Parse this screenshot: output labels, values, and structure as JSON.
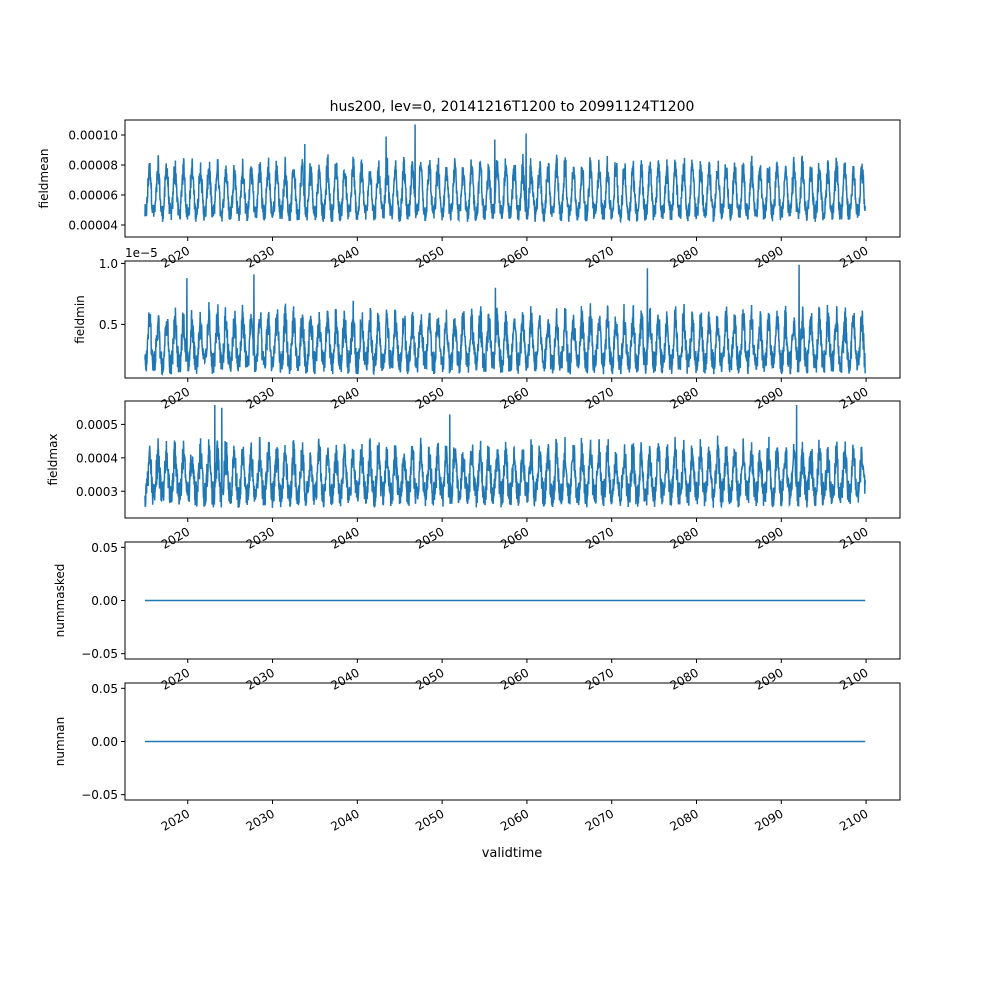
{
  "figure": {
    "title": "hus200, lev=0, 20141216T1200 to 20991124T1200",
    "xlabel": "validtime",
    "line_color": "#1f77b4"
  },
  "chart_data": [
    {
      "type": "line",
      "name": "fieldmean",
      "ylabel": "fieldmean",
      "offset_text": "",
      "x_range": [
        "2014-12-16",
        "2099-11-24"
      ],
      "xlim": [
        2012.6,
        2104.0
      ],
      "xticks": [
        2020,
        2030,
        2040,
        2050,
        2060,
        2070,
        2080,
        2090,
        2100
      ],
      "xtick_labels": [
        "2020",
        "2030",
        "2040",
        "2050",
        "2060",
        "2070",
        "2080",
        "2090",
        "2100"
      ],
      "ylim": [
        3.2e-05,
        0.00011
      ],
      "yticks": [
        4e-05,
        6e-05,
        8e-05,
        0.0001
      ],
      "ytick_labels": [
        "0.00004",
        "0.00006",
        "0.00008",
        "0.00010"
      ],
      "pattern": {
        "base": 4.8e-05,
        "amp": 3.2e-05,
        "noise": 6e-06,
        "floor": 3.5e-05,
        "ceil": 0.000107
      },
      "spikes": [
        [
          2046.8,
          0.000107
        ],
        [
          2059.9,
          0.000101
        ],
        [
          2043.4,
          9.9e-05
        ],
        [
          2033.8,
          9.4e-05
        ],
        [
          2056.2,
          9.7e-05
        ]
      ]
    },
    {
      "type": "line",
      "name": "fieldmin",
      "ylabel": "fieldmin",
      "offset_text": "1e−5",
      "scale": 1e-05,
      "xlim": [
        2012.6,
        2104.0
      ],
      "xticks": [
        2020,
        2030,
        2040,
        2050,
        2060,
        2070,
        2080,
        2090,
        2100
      ],
      "xtick_labels": [
        "2020",
        "2030",
        "2040",
        "2050",
        "2060",
        "2070",
        "2080",
        "2090",
        "2100"
      ],
      "ylim": [
        0.06,
        1.02
      ],
      "yticks": [
        0.5,
        1.0
      ],
      "ytick_labels": [
        "0.5",
        "1.0"
      ],
      "pattern": {
        "base": 0.18,
        "amp": 0.38,
        "noise": 0.1,
        "floor": 0.09,
        "ceil": 0.99
      },
      "spikes": [
        [
          2019.9,
          0.88
        ],
        [
          2027.8,
          0.91
        ],
        [
          2074.2,
          0.96
        ],
        [
          2092.1,
          0.99
        ],
        [
          2056.3,
          0.8
        ]
      ]
    },
    {
      "type": "line",
      "name": "fieldmax",
      "ylabel": "fieldmax",
      "offset_text": "",
      "xlim": [
        2012.6,
        2104.0
      ],
      "xticks": [
        2020,
        2030,
        2040,
        2050,
        2060,
        2070,
        2080,
        2090,
        2100
      ],
      "xtick_labels": [
        "2020",
        "2030",
        "2040",
        "2050",
        "2060",
        "2070",
        "2080",
        "2090",
        "2100"
      ],
      "ylim": [
        0.00022,
        0.00057
      ],
      "yticks": [
        0.0003,
        0.0004,
        0.0005
      ],
      "ytick_labels": [
        "0.0003",
        "0.0004",
        "0.0005"
      ],
      "pattern": {
        "base": 0.00029,
        "amp": 0.00013,
        "noise": 4e-05,
        "floor": 0.000235,
        "ceil": 0.00056
      },
      "spikes": [
        [
          2023.2,
          0.000558
        ],
        [
          2091.8,
          0.000558
        ],
        [
          2024.0,
          0.00055
        ],
        [
          2050.9,
          0.00053
        ]
      ]
    },
    {
      "type": "line",
      "name": "nummasked",
      "ylabel": "nummasked",
      "offset_text": "",
      "xlim": [
        2012.6,
        2104.0
      ],
      "xticks": [
        2020,
        2030,
        2040,
        2050,
        2060,
        2070,
        2080,
        2090,
        2100
      ],
      "xtick_labels": [
        "2020",
        "2030",
        "2040",
        "2050",
        "2060",
        "2070",
        "2080",
        "2090",
        "2100"
      ],
      "ylim": [
        -0.055,
        0.055
      ],
      "yticks": [
        -0.05,
        0.0,
        0.05
      ],
      "ytick_labels": [
        "−0.05",
        "0.00",
        "0.05"
      ],
      "constant": 0.0
    },
    {
      "type": "line",
      "name": "numnan",
      "ylabel": "numnan",
      "offset_text": "",
      "xlim": [
        2012.6,
        2104.0
      ],
      "xticks": [
        2020,
        2030,
        2040,
        2050,
        2060,
        2070,
        2080,
        2090,
        2100
      ],
      "xtick_labels": [
        "2020",
        "2030",
        "2040",
        "2050",
        "2060",
        "2070",
        "2080",
        "2090",
        "2100"
      ],
      "ylim": [
        -0.055,
        0.055
      ],
      "yticks": [
        -0.05,
        0.0,
        0.05
      ],
      "ytick_labels": [
        "−0.05",
        "0.00",
        "0.05"
      ],
      "constant": 0.0
    }
  ]
}
